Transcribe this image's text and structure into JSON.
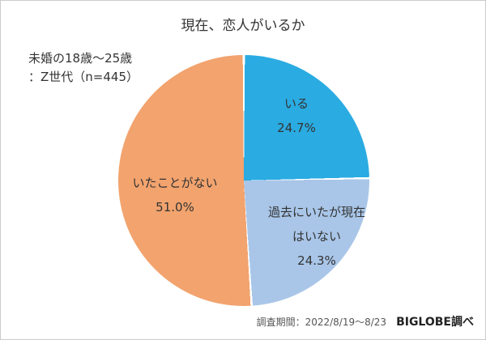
{
  "title": "現在、恋人がいるか",
  "annotation": {
    "line1": "未婚の18歳〜25歳",
    "line2": "：Z世代（n=445）"
  },
  "footer": {
    "period": "調査期間：2022/8/19〜8/23",
    "source": "BIGLOBE調べ"
  },
  "chart_data": {
    "type": "pie",
    "title": "現在、恋人がいるか",
    "sample_note": "未婚の18歳〜25歳：Z世代（n=445）",
    "start_angle_deg": 0,
    "direction": "clockwise",
    "legend": "labels-on-slices",
    "divider_color": "#ffffff",
    "segments": [
      {
        "label": "いる",
        "value": 24.7,
        "pct_text": "24.7%",
        "color": "#2aabe2"
      },
      {
        "label": "過去にいたが現在はいない",
        "label_line1": "過去にいたが現在",
        "label_line2": "はいない",
        "value": 24.3,
        "pct_text": "24.3%",
        "color": "#a9c6e8"
      },
      {
        "label": "いたことがない",
        "value": 51.0,
        "pct_text": "51.0%",
        "color": "#f2a36e"
      }
    ]
  }
}
